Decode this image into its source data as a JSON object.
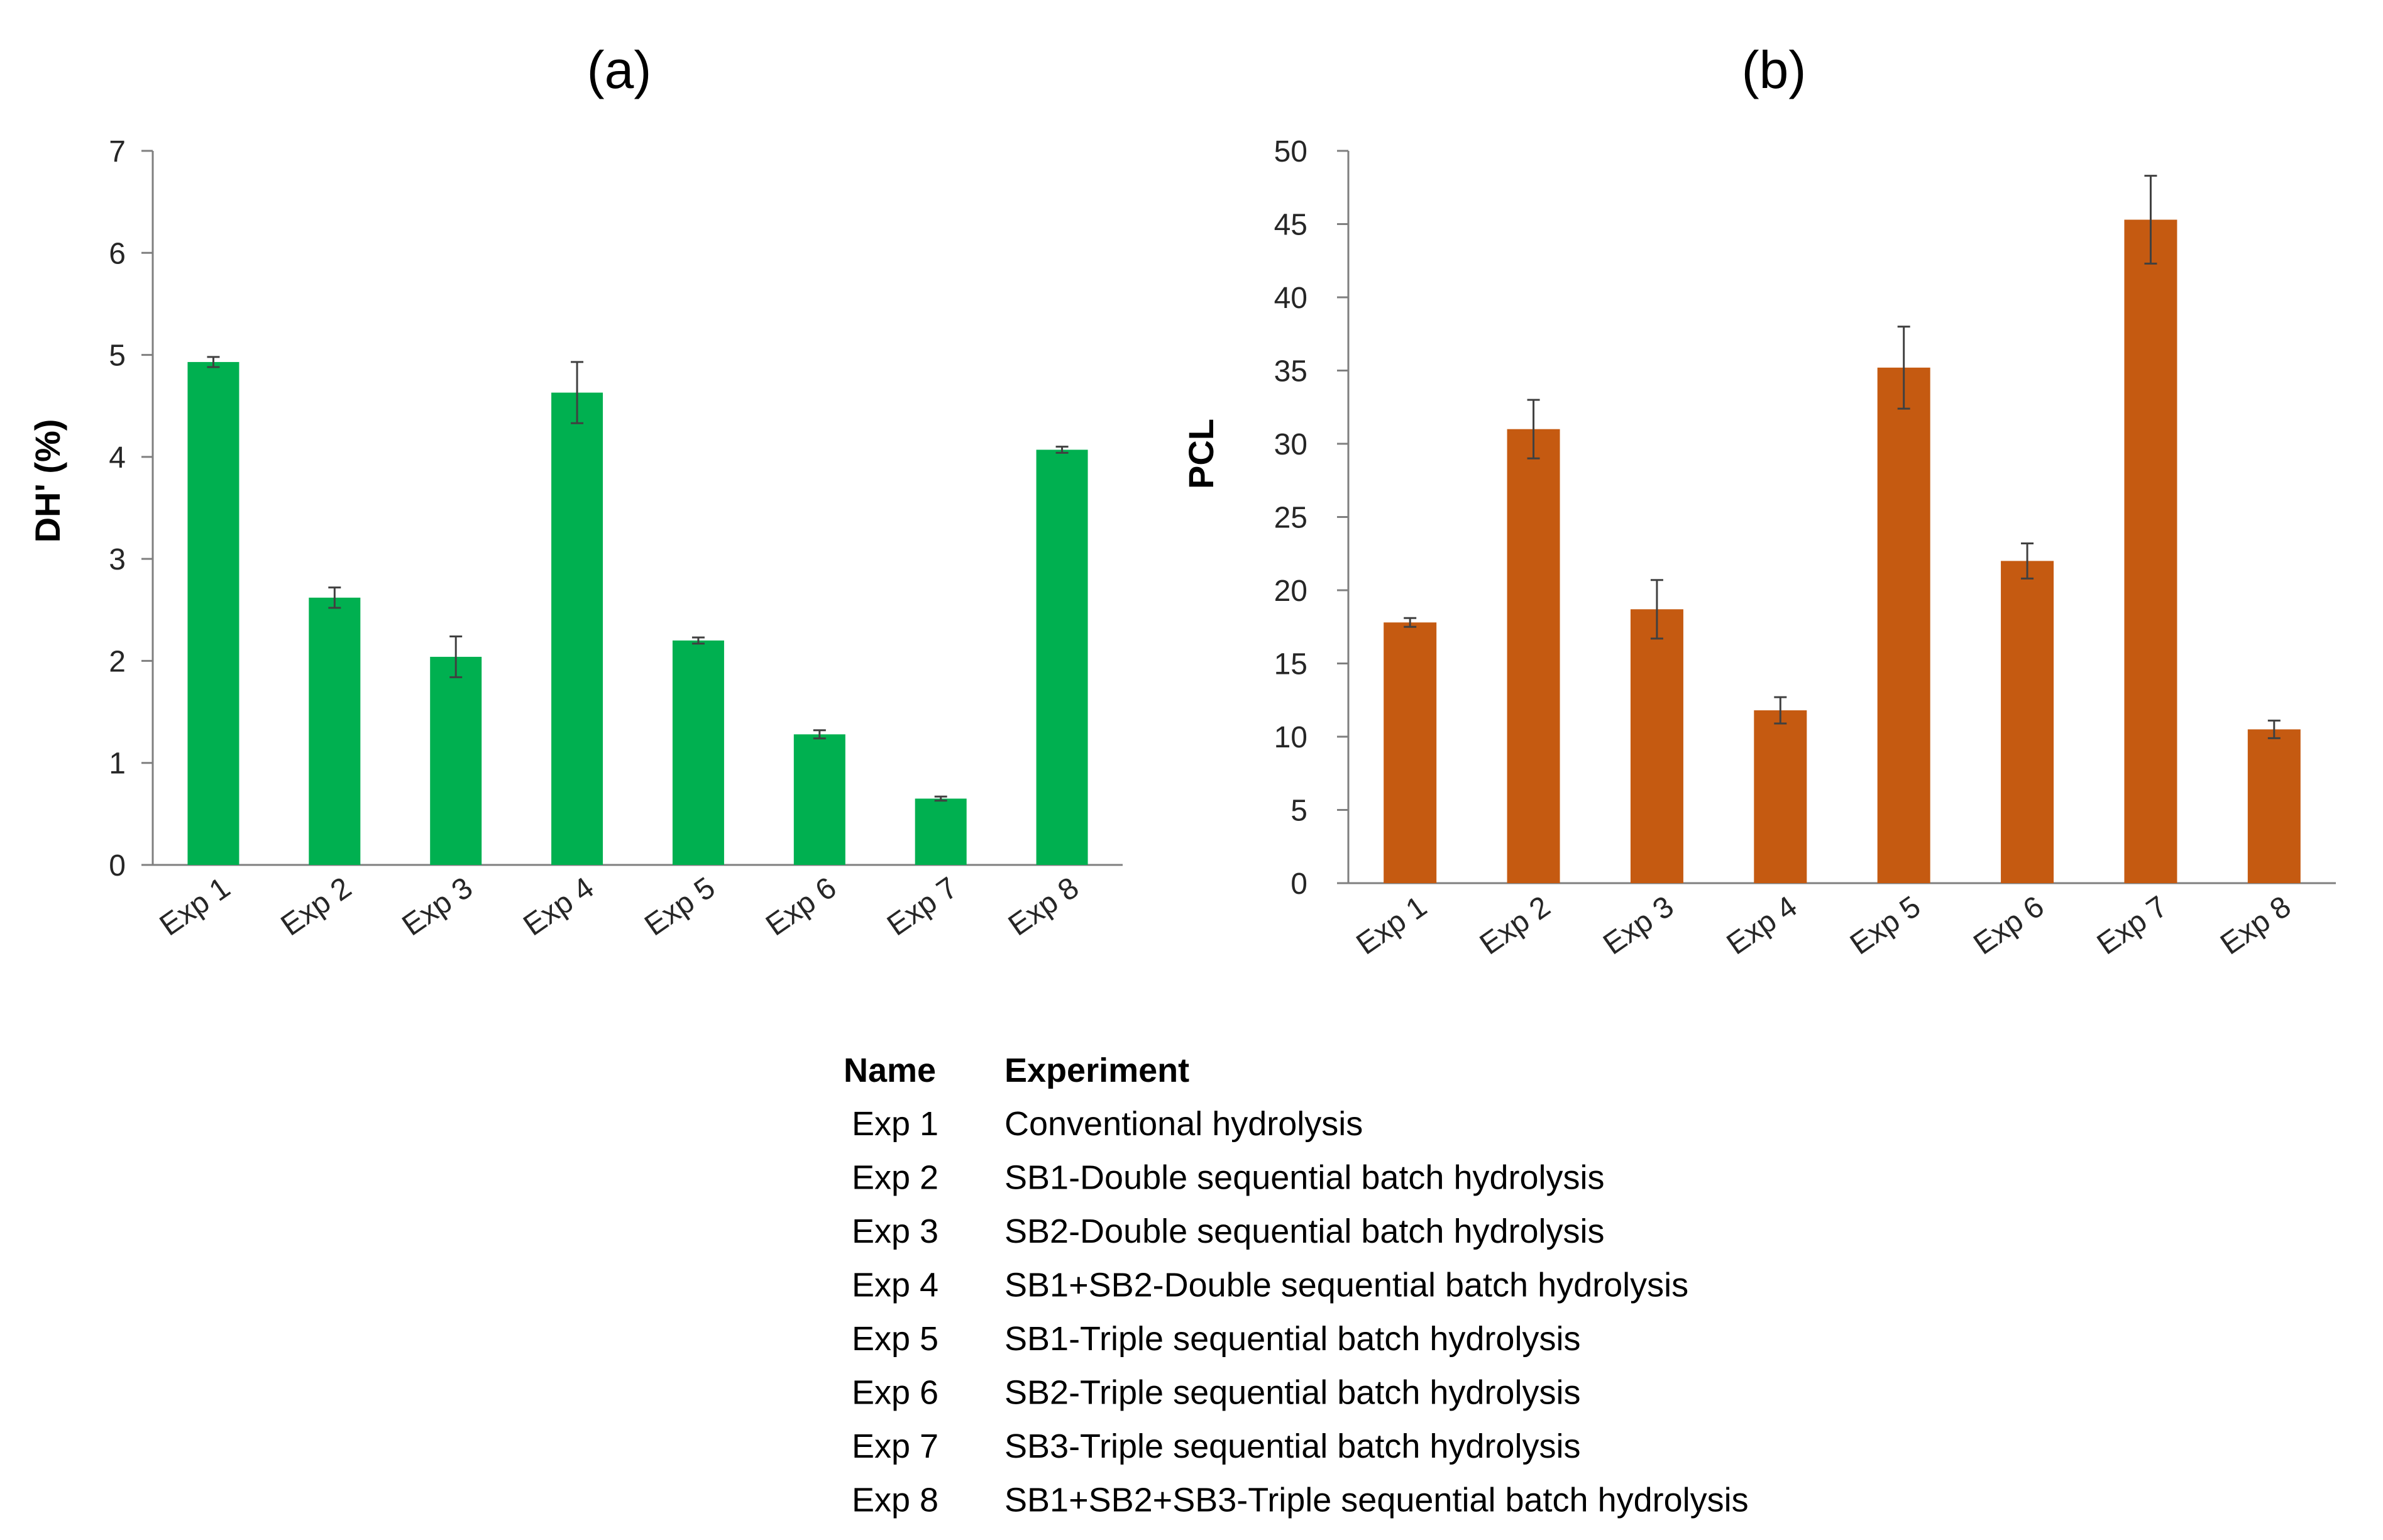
{
  "chart_data": [
    {
      "type": "bar",
      "title": "(a)",
      "xlabel": "",
      "ylabel": "DH' (%)",
      "ylim": [
        0,
        7
      ],
      "yticks": [
        0,
        1,
        2,
        3,
        4,
        5,
        6,
        7
      ],
      "categories": [
        "Exp 1",
        "Exp 2",
        "Exp 3",
        "Exp 4",
        "Exp 5",
        "Exp 6",
        "Exp 7",
        "Exp 8"
      ],
      "values": [
        4.93,
        2.62,
        2.04,
        4.63,
        2.2,
        1.28,
        0.65,
        4.07
      ],
      "errors": [
        0.05,
        0.1,
        0.2,
        0.3,
        0.03,
        0.04,
        0.02,
        0.03
      ],
      "color": "#00B050"
    },
    {
      "type": "bar",
      "title": "(b)",
      "xlabel": "",
      "ylabel": "PCL",
      "ylim": [
        0,
        50
      ],
      "yticks": [
        0,
        5,
        10,
        15,
        20,
        25,
        30,
        35,
        40,
        45,
        50
      ],
      "categories": [
        "Exp 1",
        "Exp 2",
        "Exp 3",
        "Exp 4",
        "Exp 5",
        "Exp 6",
        "Exp 7",
        "Exp 8"
      ],
      "values": [
        17.8,
        31.0,
        18.7,
        11.8,
        35.2,
        22.0,
        45.3,
        10.5
      ],
      "errors": [
        0.3,
        2.0,
        2.0,
        0.9,
        2.8,
        1.2,
        3.0,
        0.6
      ],
      "color": "#C55A11"
    }
  ],
  "legend_table": {
    "header_name": "Name",
    "header_experiment": "Experiment",
    "rows": [
      {
        "name": "Exp 1",
        "experiment": "Conventional hydrolysis"
      },
      {
        "name": "Exp 2",
        "experiment": "SB1-Double sequential batch hydrolysis"
      },
      {
        "name": "Exp 3",
        "experiment": "SB2-Double sequential batch hydrolysis"
      },
      {
        "name": "Exp 4",
        "experiment": "SB1+SB2-Double sequential batch hydrolysis"
      },
      {
        "name": "Exp 5",
        "experiment": "SB1-Triple sequential batch hydrolysis"
      },
      {
        "name": "Exp 6",
        "experiment": "SB2-Triple sequential batch hydrolysis"
      },
      {
        "name": "Exp 7",
        "experiment": "SB3-Triple sequential batch hydrolysis"
      },
      {
        "name": "Exp 8",
        "experiment": "SB1+SB2+SB3-Triple sequential batch hydrolysis"
      }
    ]
  }
}
